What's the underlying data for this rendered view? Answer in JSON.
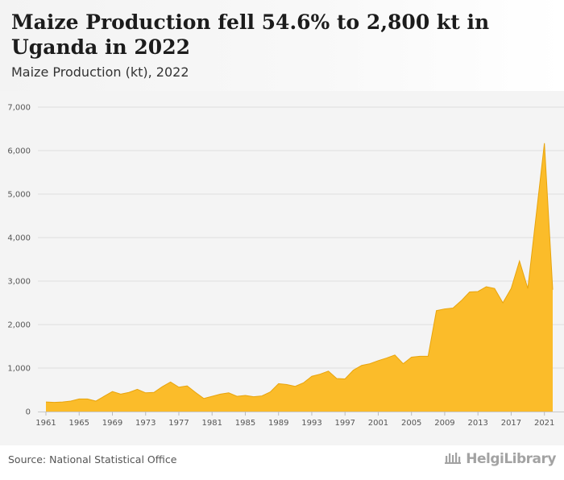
{
  "header": {
    "title": "Maize Production fell 54.6% to 2,800 kt in Uganda in 2022",
    "subtitle": "Maize Production (kt), 2022"
  },
  "footer": {
    "source": "Source: National Statistical Office",
    "brand": "HelgiLibrary"
  },
  "colors": {
    "area_fill": "#fbbc2a",
    "area_stroke": "#e8a40c",
    "grid": "#dedede",
    "plot_bg": "#f4f4f4"
  },
  "chart_data": {
    "type": "area",
    "title": "Maize Production fell 54.6% to 2,800 kt in Uganda in 2022",
    "subtitle": "Maize Production (kt), 2022",
    "xlabel": "",
    "ylabel": "",
    "ylim": [
      0,
      7000
    ],
    "yticks": [
      0,
      1000,
      2000,
      3000,
      4000,
      5000,
      6000,
      7000
    ],
    "ytick_labels": [
      "0",
      "1,000",
      "2,000",
      "3,000",
      "4,000",
      "5,000",
      "6,000",
      "7,000"
    ],
    "xticks": [
      1961,
      1965,
      1969,
      1973,
      1977,
      1981,
      1985,
      1989,
      1993,
      1997,
      2001,
      2005,
      2009,
      2013,
      2017,
      2021
    ],
    "xtick_labels": [
      "1961",
      "1965",
      "1969",
      "1973",
      "1977",
      "1981",
      "1985",
      "1989",
      "1993",
      "1997",
      "2001",
      "2005",
      "2009",
      "2013",
      "2017",
      "2021"
    ],
    "grid": true,
    "x": [
      1961,
      1962,
      1963,
      1964,
      1965,
      1966,
      1967,
      1968,
      1969,
      1970,
      1971,
      1972,
      1973,
      1974,
      1975,
      1976,
      1977,
      1978,
      1979,
      1980,
      1981,
      1982,
      1983,
      1984,
      1985,
      1986,
      1987,
      1988,
      1989,
      1990,
      1991,
      1992,
      1993,
      1994,
      1995,
      1996,
      1997,
      1998,
      1999,
      2000,
      2001,
      2002,
      2003,
      2004,
      2005,
      2006,
      2007,
      2008,
      2009,
      2010,
      2011,
      2012,
      2013,
      2014,
      2015,
      2016,
      2017,
      2018,
      2019,
      2020,
      2021,
      2022
    ],
    "series": [
      {
        "values": [
          220,
          210,
          220,
          240,
          290,
          290,
          240,
          350,
          460,
          400,
          440,
          510,
          430,
          440,
          570,
          680,
          560,
          590,
          440,
          300,
          350,
          400,
          430,
          350,
          370,
          340,
          360,
          450,
          640,
          620,
          580,
          660,
          810,
          860,
          930,
          760,
          750,
          950,
          1060,
          1100,
          1170,
          1230,
          1300,
          1100,
          1250,
          1270,
          1270,
          2320,
          2360,
          2380,
          2550,
          2750,
          2760,
          2870,
          2830,
          2500,
          2830,
          3460,
          2830,
          4500,
          6170,
          2800
        ]
      }
    ]
  }
}
